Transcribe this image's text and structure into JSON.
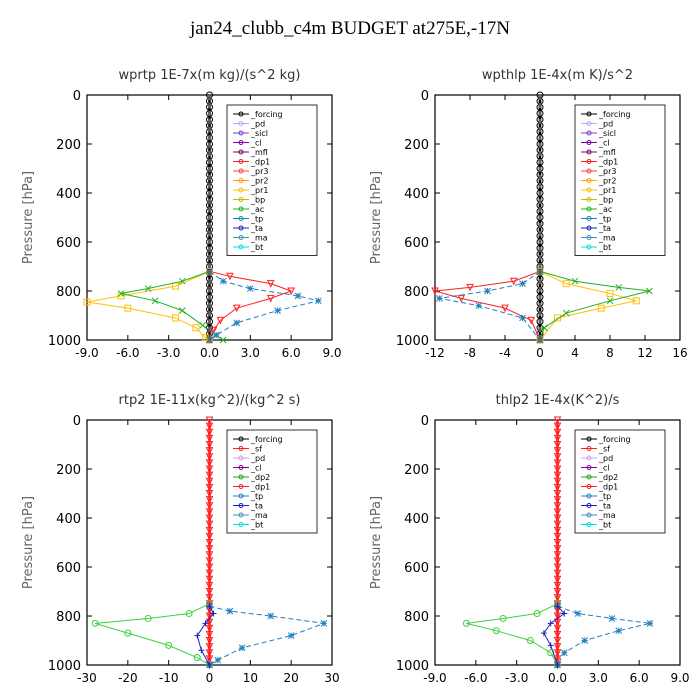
{
  "figure_title": "jan24_clubb_c4m  BUDGET at275E,-17N",
  "chart_data": [
    {
      "type": "line",
      "title": "wprtp  1E-7x(m kg)/(s^2 kg)",
      "ylabel": "Pressure [hPa]",
      "xlim": [
        -9,
        9
      ],
      "ylim": [
        1000,
        0
      ],
      "xticks": [
        "-9.0",
        "-6.0",
        "-3.0",
        "0.0",
        "3.0",
        "6.0",
        "9.0"
      ],
      "xtick_values": [
        -9,
        -6,
        -3,
        0,
        3,
        6,
        9
      ],
      "yticks": [
        "0",
        "200",
        "400",
        "600",
        "800",
        "1000"
      ],
      "ytick_values": [
        0,
        200,
        400,
        600,
        800,
        1000
      ],
      "legend": [
        "_forcing",
        "_pd",
        "_sicl",
        "_cl",
        "_mfl",
        "_dp1",
        "_pr3",
        "_pr2",
        "_pr1",
        "_bp",
        "_ac",
        "_tp",
        "_ta",
        "_ma",
        "_bt"
      ],
      "series": [
        {
          "name": "_forcing",
          "color": "#000000",
          "marker": "circle",
          "values": [
            [
              0,
              0
            ],
            [
              0,
              1000
            ]
          ]
        },
        {
          "name": "_dp1",
          "color": "#ff2020",
          "marker": "triangle",
          "values": [
            [
              0,
              720
            ],
            [
              1.5,
              740
            ],
            [
              4.5,
              770
            ],
            [
              6.0,
              800
            ],
            [
              4.5,
              830
            ],
            [
              2.0,
              870
            ],
            [
              0.8,
              920
            ],
            [
              0.3,
              960
            ],
            [
              0,
              1000
            ]
          ]
        },
        {
          "name": "_pr1",
          "color": "#ffc000",
          "marker": "square",
          "values": [
            [
              0,
              720
            ],
            [
              -2.5,
              780
            ],
            [
              -6.5,
              820
            ],
            [
              -9.0,
              845
            ],
            [
              -6.0,
              870
            ],
            [
              -2.5,
              910
            ],
            [
              -1.0,
              950
            ],
            [
              -0.3,
              990
            ],
            [
              0,
              1000
            ]
          ]
        },
        {
          "name": "_ac",
          "color": "#20b020",
          "marker": "x",
          "values": [
            [
              0,
              720
            ],
            [
              -2.0,
              760
            ],
            [
              -4.5,
              790
            ],
            [
              -6.5,
              810
            ],
            [
              -4.0,
              840
            ],
            [
              -2.0,
              880
            ],
            [
              -0.5,
              940
            ],
            [
              0.5,
              980
            ],
            [
              1.0,
              1000
            ]
          ]
        },
        {
          "name": "_tp",
          "color": "#2080c0",
          "marker": "star",
          "values": [
            [
              0,
              720
            ],
            [
              1.0,
              760
            ],
            [
              3.0,
              790
            ],
            [
              6.5,
              820
            ],
            [
              8.0,
              840
            ],
            [
              5.0,
              880
            ],
            [
              2.0,
              930
            ],
            [
              0.5,
              980
            ],
            [
              0,
              1000
            ]
          ]
        },
        {
          "name": "_ma",
          "color": "#606060",
          "marker": "none",
          "values": [
            [
              0,
              0
            ],
            [
              0,
              1000
            ]
          ]
        }
      ]
    },
    {
      "type": "line",
      "title": "wpthlp  1E-4x(m K)/s^2",
      "ylabel": "Pressure [hPa]",
      "xlim": [
        -12,
        16
      ],
      "ylim": [
        1000,
        0
      ],
      "xticks": [
        "-12",
        "-8",
        "-4",
        "0",
        "4",
        "8",
        "12",
        "16"
      ],
      "xtick_values": [
        -12,
        -8,
        -4,
        0,
        4,
        8,
        12,
        16
      ],
      "yticks": [
        "0",
        "200",
        "400",
        "600",
        "800",
        "1000"
      ],
      "ytick_values": [
        0,
        200,
        400,
        600,
        800,
        1000
      ],
      "legend": [
        "_forcing",
        "_pd",
        "_sicl",
        "_cl",
        "_mfl",
        "_dp1",
        "_pr3",
        "_pr2",
        "_pr1",
        "_bp",
        "_ac",
        "_tp",
        "_ta",
        "_ma",
        "_bt"
      ],
      "series": [
        {
          "name": "_forcing",
          "color": "#000000",
          "marker": "circle",
          "values": [
            [
              0,
              0
            ],
            [
              0,
              1000
            ]
          ]
        },
        {
          "name": "_dp1",
          "color": "#ff2020",
          "marker": "triangle",
          "values": [
            [
              0,
              720
            ],
            [
              -3,
              760
            ],
            [
              -8,
              785
            ],
            [
              -12,
              800
            ],
            [
              -9,
              830
            ],
            [
              -4,
              870
            ],
            [
              -1,
              920
            ],
            [
              0,
              1000
            ]
          ]
        },
        {
          "name": "_pr1",
          "color": "#ffc000",
          "marker": "square",
          "values": [
            [
              0,
              720
            ],
            [
              3,
              770
            ],
            [
              8,
              810
            ],
            [
              11,
              840
            ],
            [
              7,
              870
            ],
            [
              2,
              910
            ],
            [
              0,
              1000
            ]
          ]
        },
        {
          "name": "_ac",
          "color": "#20b020",
          "marker": "x",
          "values": [
            [
              0,
              720
            ],
            [
              4,
              760
            ],
            [
              9,
              785
            ],
            [
              12.5,
              800
            ],
            [
              8,
              840
            ],
            [
              3,
              890
            ],
            [
              0.5,
              950
            ],
            [
              0,
              1000
            ]
          ]
        },
        {
          "name": "_tp",
          "color": "#2080c0",
          "marker": "star",
          "values": [
            [
              0,
              720
            ],
            [
              -2,
              770
            ],
            [
              -6,
              800
            ],
            [
              -11.5,
              830
            ],
            [
              -7,
              860
            ],
            [
              -2,
              910
            ],
            [
              0,
              1000
            ]
          ]
        },
        {
          "name": "_ma",
          "color": "#606060",
          "marker": "none",
          "values": [
            [
              0,
              0
            ],
            [
              0,
              1000
            ]
          ]
        }
      ]
    },
    {
      "type": "line",
      "title": "rtp2  1E-11x(kg^2)/(kg^2 s)",
      "ylabel": "Pressure [hPa]",
      "xlim": [
        -30,
        30
      ],
      "ylim": [
        1000,
        0
      ],
      "xticks": [
        "-30",
        "-20",
        "-10",
        "0",
        "10",
        "20",
        "30"
      ],
      "xtick_values": [
        -30,
        -20,
        -10,
        0,
        10,
        20,
        30
      ],
      "yticks": [
        "0",
        "200",
        "400",
        "600",
        "800",
        "1000"
      ],
      "ytick_values": [
        0,
        200,
        400,
        600,
        800,
        1000
      ],
      "legend": [
        "_forcing",
        "_sf",
        "_pd",
        "_cl",
        "_dp2",
        "_dp1",
        "_tp",
        "_ta",
        "_ma",
        "_bt"
      ],
      "series": [
        {
          "name": "_forcing",
          "color": "#ff2020",
          "marker": "triangle",
          "values": [
            [
              0,
              0
            ],
            [
              0,
              1000
            ]
          ]
        },
        {
          "name": "_dp1",
          "color": "#40d040",
          "marker": "circle",
          "values": [
            [
              0,
              750
            ],
            [
              -5,
              790
            ],
            [
              -15,
              810
            ],
            [
              -28,
              830
            ],
            [
              -20,
              870
            ],
            [
              -10,
              920
            ],
            [
              -3,
              970
            ],
            [
              0,
              1000
            ]
          ]
        },
        {
          "name": "_tp",
          "color": "#2080c0",
          "marker": "star",
          "values": [
            [
              0,
              760
            ],
            [
              5,
              780
            ],
            [
              15,
              800
            ],
            [
              28,
              830
            ],
            [
              20,
              880
            ],
            [
              8,
              930
            ],
            [
              2,
              980
            ],
            [
              0,
              1000
            ]
          ]
        },
        {
          "name": "_ta",
          "color": "#2020c0",
          "marker": "plus",
          "values": [
            [
              0,
              760
            ],
            [
              1,
              790
            ],
            [
              -1,
              830
            ],
            [
              -3,
              880
            ],
            [
              -2,
              940
            ],
            [
              0,
              1000
            ]
          ]
        }
      ]
    },
    {
      "type": "line",
      "title": "thlp2  1E-4x(K^2)/s",
      "ylabel": "Pressure [hPa]",
      "xlim": [
        -9,
        9
      ],
      "ylim": [
        1000,
        0
      ],
      "xticks": [
        "-9.0",
        "-6.0",
        "-3.0",
        "0.0",
        "3.0",
        "6.0",
        "9.0"
      ],
      "xtick_values": [
        -9,
        -6,
        -3,
        0,
        3,
        6,
        9
      ],
      "yticks": [
        "0",
        "200",
        "400",
        "600",
        "800",
        "1000"
      ],
      "ytick_values": [
        0,
        200,
        400,
        600,
        800,
        1000
      ],
      "legend": [
        "_forcing",
        "_sf",
        "_pd",
        "_cl",
        "_dp2",
        "_dp1",
        "_tp",
        "_ta",
        "_ma",
        "_bt"
      ],
      "series": [
        {
          "name": "_forcing",
          "color": "#ff2020",
          "marker": "triangle",
          "values": [
            [
              0,
              0
            ],
            [
              0,
              1000
            ]
          ]
        },
        {
          "name": "_dp1",
          "color": "#40d040",
          "marker": "circle",
          "values": [
            [
              0,
              750
            ],
            [
              -1.5,
              790
            ],
            [
              -4,
              810
            ],
            [
              -6.7,
              830
            ],
            [
              -4.5,
              860
            ],
            [
              -2,
              900
            ],
            [
              -0.5,
              950
            ],
            [
              0,
              1000
            ]
          ]
        },
        {
          "name": "_tp",
          "color": "#2080c0",
          "marker": "star",
          "values": [
            [
              0,
              760
            ],
            [
              1.5,
              790
            ],
            [
              4,
              810
            ],
            [
              6.8,
              830
            ],
            [
              4.5,
              860
            ],
            [
              2,
              900
            ],
            [
              0.5,
              950
            ],
            [
              0,
              1000
            ]
          ]
        },
        {
          "name": "_ta",
          "color": "#2020c0",
          "marker": "plus",
          "values": [
            [
              0,
              760
            ],
            [
              0.5,
              790
            ],
            [
              -0.5,
              830
            ],
            [
              -1,
              870
            ],
            [
              -0.5,
              920
            ],
            [
              0,
              1000
            ]
          ]
        }
      ]
    }
  ],
  "legend_colors": {
    "_forcing": "#000000",
    "_pd": "#c8a0ff",
    "_sicl": "#8040c0",
    "_cl": "#8000a0",
    "_mfl": "#800060",
    "_dp1": "#ff2020",
    "_pr3": "#ff4040",
    "_pr2": "#ffa000",
    "_pr1": "#ffc000",
    "_bp": "#c0c000",
    "_ac": "#20b020",
    "_tp": "#2080c0",
    "_ta": "#2020c0",
    "_ma": "#4090c0",
    "_bt": "#00e0e0",
    "_sf": "#ff2020",
    "_dp2": "#20a020"
  }
}
